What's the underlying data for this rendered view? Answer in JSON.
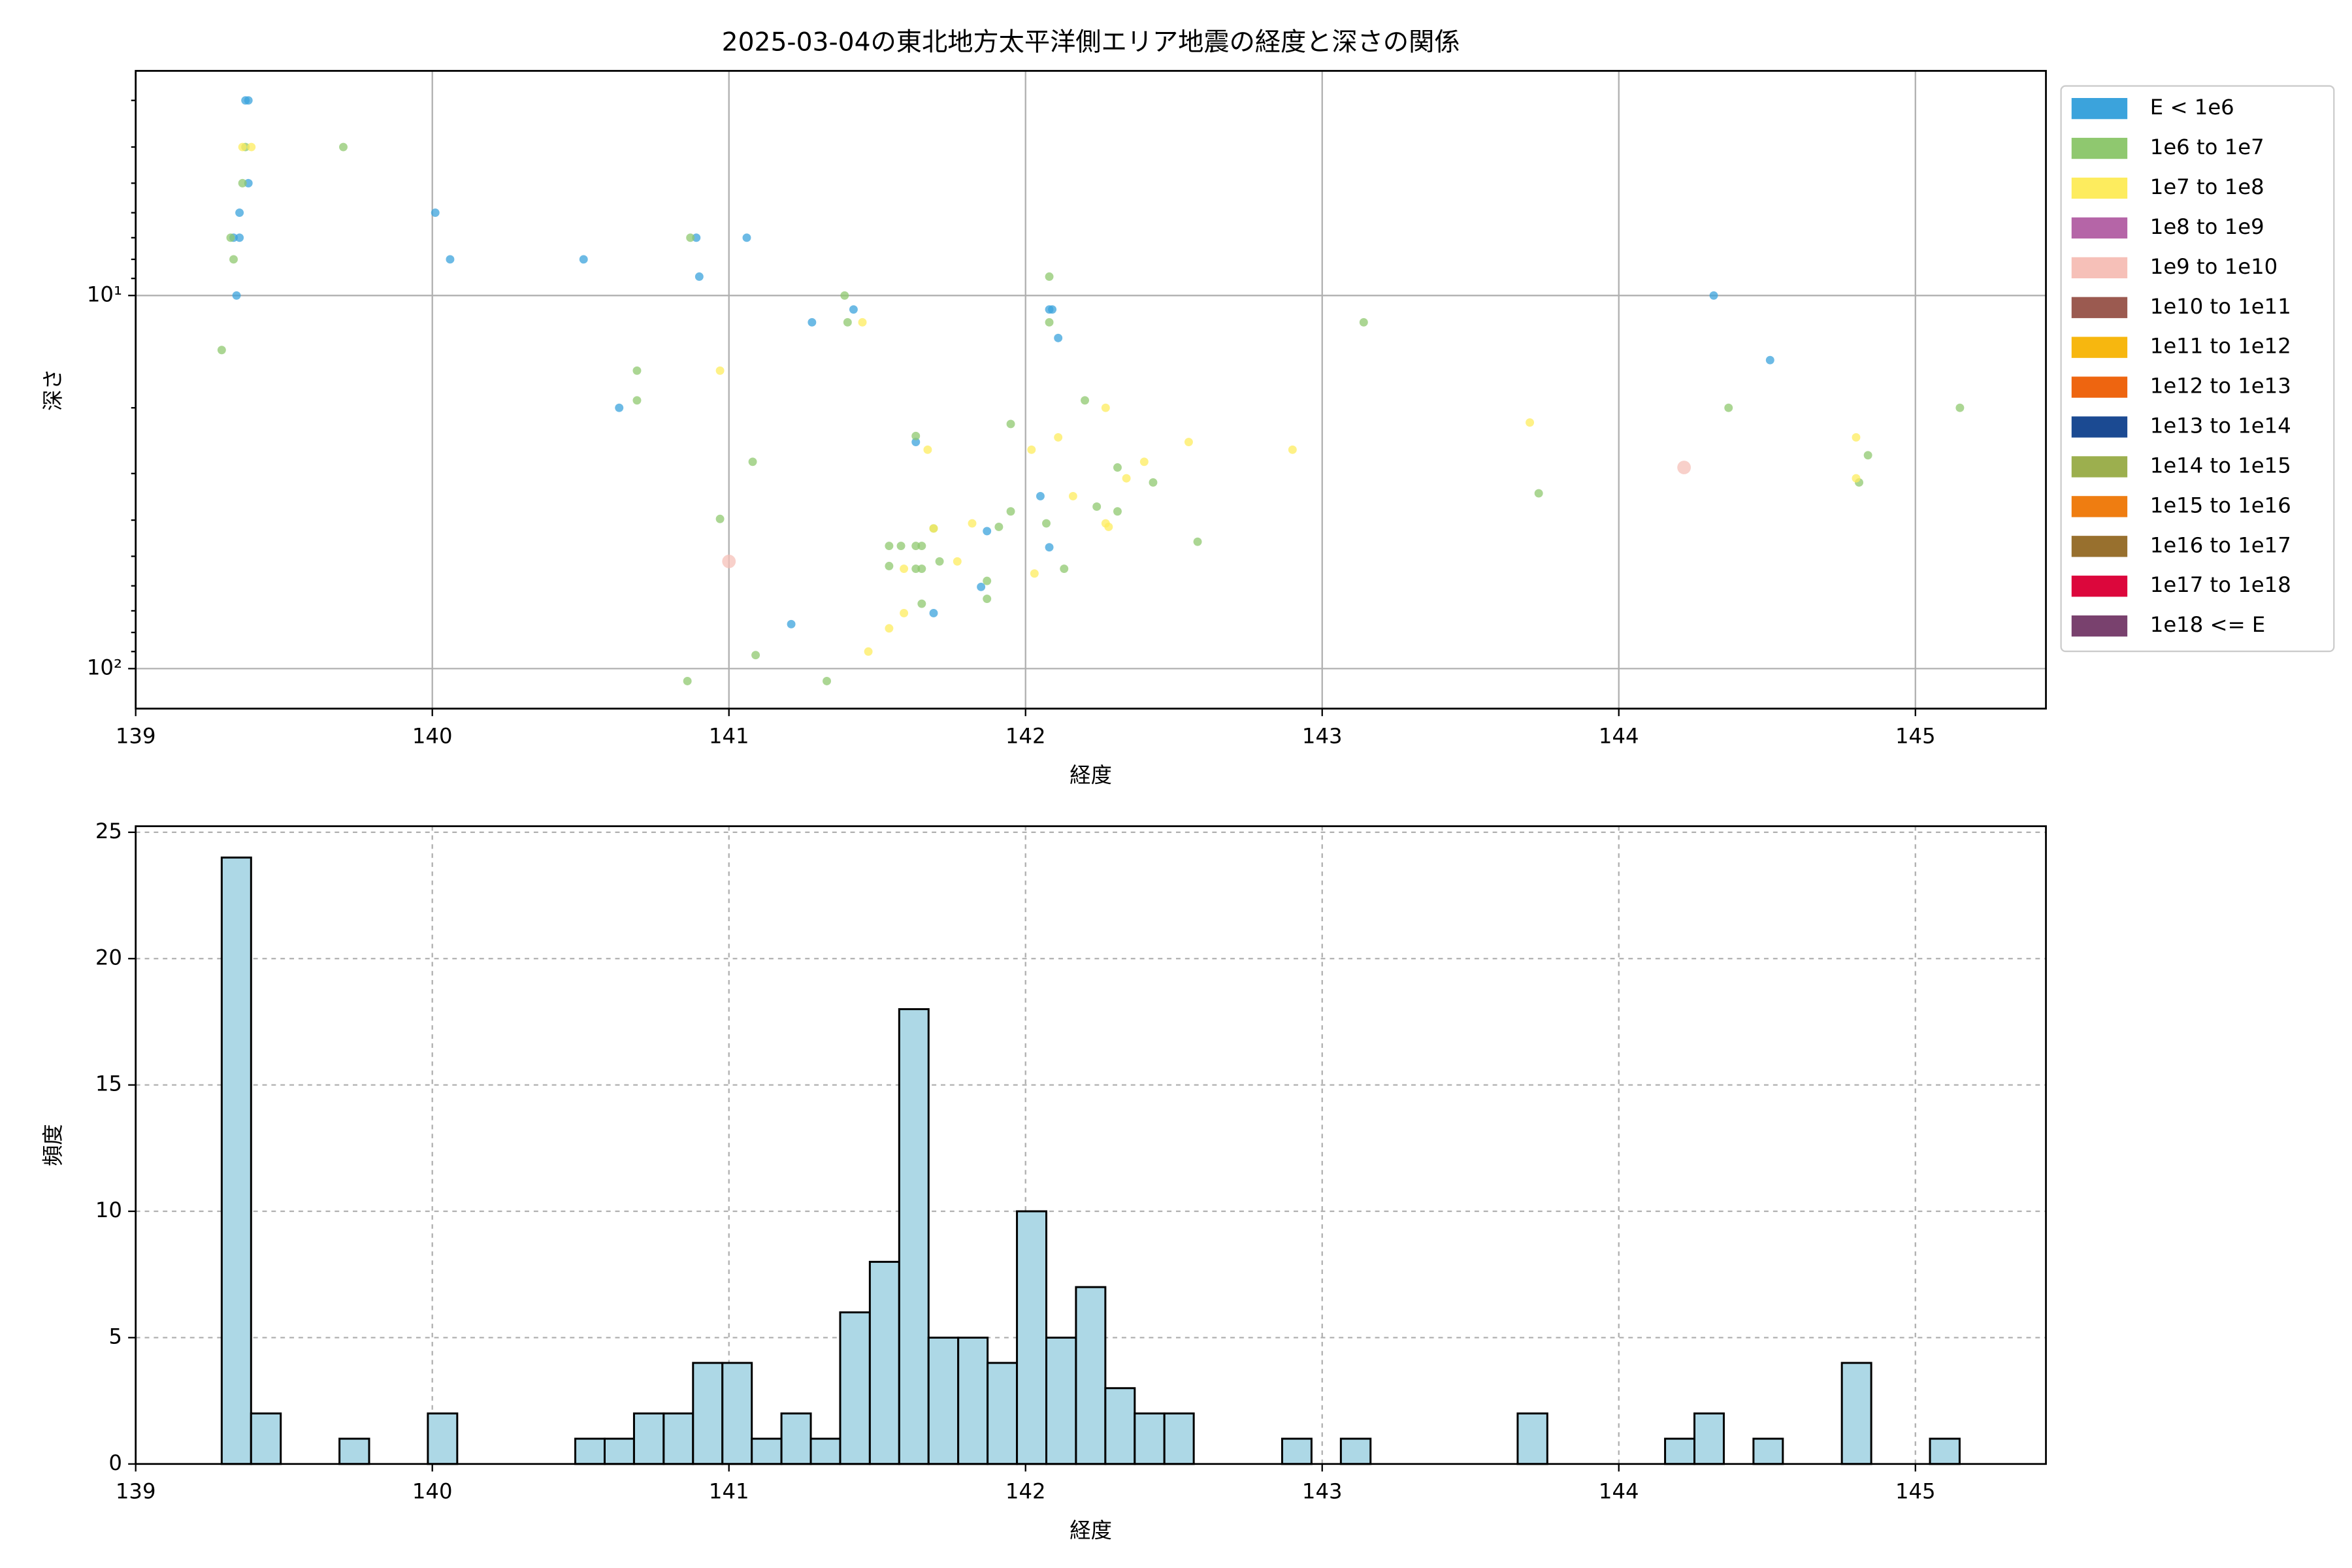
{
  "chart_data": [
    {
      "type": "scatter",
      "title": "2025-03-04の東北地方太平洋側エリア地震の経度と深さの関係",
      "xlabel": "経度",
      "ylabel": "深さ",
      "xlim": [
        139,
        145.44
      ],
      "xticks": [
        139,
        140,
        141,
        142,
        143,
        144,
        145
      ],
      "ylim": [
        2.5,
        128
      ],
      "log_y": true,
      "y_inverted": true,
      "yticks": [
        {
          "value": 10,
          "label": "10¹"
        },
        {
          "value": 100,
          "label": "10²"
        }
      ],
      "minor_yticks": [
        3,
        4,
        5,
        6,
        7,
        8,
        9,
        20,
        30,
        40,
        50,
        60,
        70,
        80,
        90
      ],
      "grid": true,
      "legend": "outside-right",
      "series": [
        {
          "name": "E < 1e6",
          "color": "#3ba3dc",
          "x": [
            139.37,
            139.38,
            139.38,
            139.35,
            139.33,
            139.35,
            139.34,
            140.01,
            140.06,
            140.51,
            140.89,
            140.9,
            141.06,
            140.63,
            141.28,
            141.42,
            142.08,
            142.09,
            142.11,
            141.63,
            142.05,
            141.87,
            142.08,
            141.85,
            141.69,
            141.21,
            144.32,
            144.51
          ],
          "values": [
            3.0,
            3.0,
            5,
            6,
            7,
            7,
            10,
            6.0,
            8,
            8,
            7,
            8.9,
            7,
            20,
            11.8,
            10.9,
            10.9,
            10.9,
            13,
            24.7,
            34.5,
            42.8,
            47.3,
            60.4,
            71,
            76,
            10,
            14.9
          ]
        },
        {
          "name": "1e6 to 1e7",
          "color": "#8fc86f",
          "x": [
            139.7,
            139.36,
            139.37,
            139.29,
            139.33,
            139.32,
            140.87,
            141.39,
            141.4,
            142.08,
            142.08,
            143.14,
            140.69,
            140.69,
            142.2,
            141.63,
            141.95,
            141.08,
            140.97,
            144.37,
            145.15,
            144.84,
            144.81,
            143.73,
            142.31,
            142.43,
            142.31,
            142.24,
            142.07,
            141.95,
            141.91,
            142.58,
            141.54,
            141.58,
            141.63,
            141.65,
            141.54,
            141.63,
            141.65,
            141.71,
            142.13,
            141.87,
            141.65,
            141.87,
            141.69,
            141.09,
            140.86,
            141.33
          ],
          "values": [
            4,
            5,
            4,
            14.0,
            8,
            7,
            7,
            10,
            11.8,
            8.9,
            11.8,
            11.8,
            15.9,
            19.1,
            19.1,
            23.8,
            22.1,
            27.9,
            39.7,
            20,
            20,
            26.8,
            31.7,
            33.9,
            28.9,
            31.7,
            37.9,
            36.8,
            40.8,
            37.9,
            41.7,
            45.7,
            46.9,
            46.9,
            46.9,
            46.9,
            53.1,
            54,
            54,
            51.6,
            54,
            58.2,
            67,
            65,
            42.1,
            92,
            108,
            108
          ]
        },
        {
          "name": "1e7 to 1e8",
          "color": "#fdec5e",
          "x": [
            139.36,
            139.39,
            141.45,
            140.97,
            142.27,
            143.7,
            142.11,
            142.02,
            141.67,
            142.55,
            142.9,
            142.4,
            142.34,
            144.8,
            144.8,
            142.16,
            142.27,
            142.28,
            141.82,
            141.69,
            141.77,
            141.59,
            142.03,
            141.59,
            141.54,
            141.47
          ],
          "values": [
            4,
            4,
            11.8,
            15.9,
            20,
            21.9,
            24,
            25.9,
            25.9,
            24.7,
            25.9,
            27.9,
            30.9,
            24,
            30.9,
            34.5,
            40.8,
            41.7,
            40.8,
            42.1,
            51.6,
            54,
            55.6,
            71,
            78,
            90
          ]
        },
        {
          "name": "1e8 to 1e9",
          "color": "#b565a7",
          "x": [],
          "values": []
        },
        {
          "name": "1e9 to 1e10",
          "color": "#f6c0b8",
          "x": [
            141.0,
            144.22
          ],
          "values": [
            51.6,
            28.9
          ]
        },
        {
          "name": "1e10 to 1e11",
          "color": "#9b5a50",
          "x": [],
          "values": []
        },
        {
          "name": "1e11 to 1e12",
          "color": "#f7b70f",
          "x": [],
          "values": []
        },
        {
          "name": "1e12 to 1e13",
          "color": "#ee6510",
          "x": [],
          "values": []
        },
        {
          "name": "1e13 to 1e14",
          "color": "#1b4a92",
          "x": [],
          "values": []
        },
        {
          "name": "1e14 to 1e15",
          "color": "#9caf4e",
          "x": [],
          "values": []
        },
        {
          "name": "1e15 to 1e16",
          "color": "#ef7d11",
          "x": [],
          "values": []
        },
        {
          "name": "1e16 to 1e17",
          "color": "#98702e",
          "x": [],
          "values": []
        },
        {
          "name": "1e17 to 1e18",
          "color": "#dc073c",
          "x": [],
          "values": []
        },
        {
          "name": "1e18 <= E",
          "color": "#79416e",
          "x": [],
          "values": []
        }
      ]
    },
    {
      "type": "histogram",
      "xlabel": "経度",
      "ylabel": "頻度",
      "color": "#add8e6",
      "edgecolor": "#000000",
      "xlim": [
        139,
        145.44
      ],
      "xticks": [
        139,
        140,
        141,
        142,
        143,
        144,
        145
      ],
      "ylim": [
        0,
        25.24
      ],
      "yticks": [
        0,
        5,
        10,
        15,
        20,
        25
      ],
      "grid": true,
      "bins": [
        139.29,
        139.389,
        139.489,
        139.588,
        139.687,
        139.787,
        139.886,
        139.985,
        140.084,
        140.184,
        140.283,
        140.382,
        140.482,
        140.581,
        140.68,
        140.78,
        140.879,
        140.978,
        141.077,
        141.177,
        141.276,
        141.375,
        141.475,
        141.574,
        141.673,
        141.773,
        141.872,
        141.971,
        142.07,
        142.17,
        142.269,
        142.368,
        142.468,
        142.567,
        142.666,
        142.766,
        142.865,
        142.964,
        143.063,
        143.163,
        143.262,
        143.361,
        143.461,
        143.56,
        143.659,
        143.759,
        143.858,
        143.957,
        144.056,
        144.156,
        144.255,
        144.354,
        144.454,
        144.553,
        144.652,
        144.752,
        144.851,
        144.95,
        145.049,
        145.149
      ],
      "values": [
        24,
        2,
        0,
        0,
        1,
        0,
        0,
        2,
        0,
        0,
        0,
        0,
        1,
        1,
        2,
        2,
        4,
        4,
        1,
        2,
        1,
        6,
        8,
        18,
        5,
        5,
        4,
        10,
        5,
        7,
        3,
        2,
        2,
        0,
        0,
        0,
        1,
        0,
        1,
        0,
        0,
        0,
        0,
        0,
        2,
        0,
        0,
        0,
        0,
        1,
        2,
        0,
        1,
        0,
        0,
        4,
        0,
        0,
        1
      ]
    }
  ]
}
